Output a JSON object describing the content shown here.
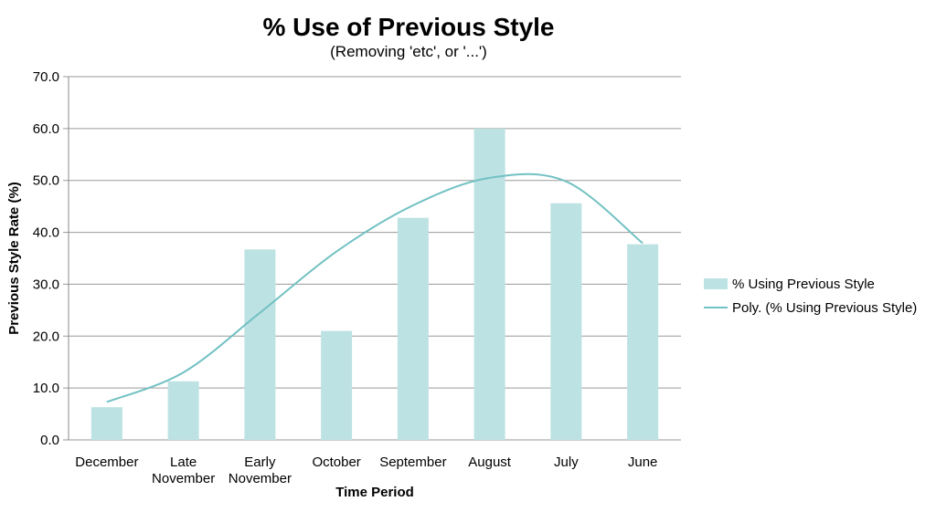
{
  "chart_data": {
    "type": "bar",
    "title": "% Use of Previous Style",
    "subtitle": "(Removing 'etc', or '...')",
    "xlabel": "Time Period",
    "ylabel": "Previous Style Rate (%)",
    "ylim": [
      0,
      70
    ],
    "yticks": [
      "0.0",
      "10.0",
      "20.0",
      "30.0",
      "40.0",
      "50.0",
      "60.0",
      "70.0"
    ],
    "grid": true,
    "legend_position": "right",
    "categories": [
      [
        "December"
      ],
      [
        "Late",
        "November"
      ],
      [
        "Early",
        "November"
      ],
      [
        "October"
      ],
      [
        "September"
      ],
      [
        "August"
      ],
      [
        "July"
      ],
      [
        "June"
      ]
    ],
    "series": [
      {
        "name": "% Using Previous Style",
        "kind": "bar",
        "color": "#bde2e3",
        "values": [
          6.3,
          11.3,
          36.7,
          21.0,
          42.8,
          60.0,
          45.6,
          37.7
        ]
      },
      {
        "name": "Poly. (% Using Previous Style)",
        "kind": "trendline",
        "color": "#72c1c3",
        "values": [
          7.3,
          13.0,
          24.5,
          36.3,
          45.2,
          50.5,
          49.8,
          37.9
        ]
      }
    ]
  }
}
